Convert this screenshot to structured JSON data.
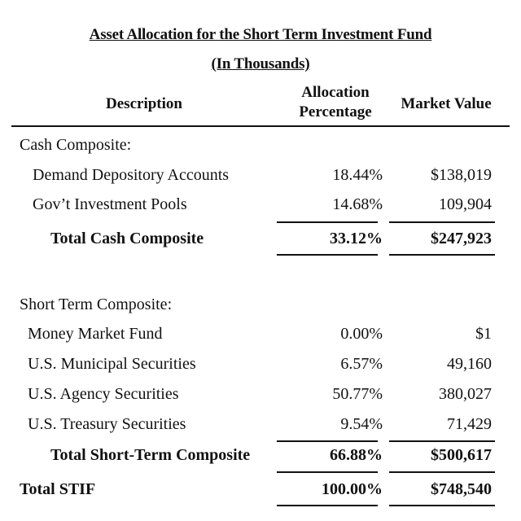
{
  "title": "Asset Allocation for the Short Term Investment Fund",
  "subtitle": "(In Thousands)",
  "headers": {
    "description": "Description",
    "allocation_line1": "Allocation",
    "allocation_line2": "Percentage",
    "market_value": "Market Value"
  },
  "cash": {
    "heading": "Cash Composite:",
    "rows": [
      {
        "label": "Demand Depository Accounts",
        "pct": "18.44%",
        "value": "$138,019"
      },
      {
        "label": "Gov’t Investment Pools",
        "pct": "14.68%",
        "value": "109,904"
      }
    ],
    "total": {
      "label": "Total Cash Composite",
      "pct": "33.12%",
      "value": "$247,923"
    }
  },
  "short_term": {
    "heading": "Short Term Composite:",
    "rows": [
      {
        "label": "Money Market Fund",
        "pct": "0.00%",
        "value": "$1"
      },
      {
        "label": "U.S. Municipal Securities",
        "pct": "6.57%",
        "value": "49,160"
      },
      {
        "label": "U.S. Agency Securities",
        "pct": "50.77%",
        "value": "380,027"
      },
      {
        "label": "U.S. Treasury Securities",
        "pct": "9.54%",
        "value": "71,429"
      }
    ],
    "total": {
      "label": "Total Short-Term Composite",
      "pct": "66.88%",
      "value": "$500,617"
    }
  },
  "grand_total": {
    "label": "Total STIF",
    "pct": "100.00%",
    "value": "$748,540"
  }
}
